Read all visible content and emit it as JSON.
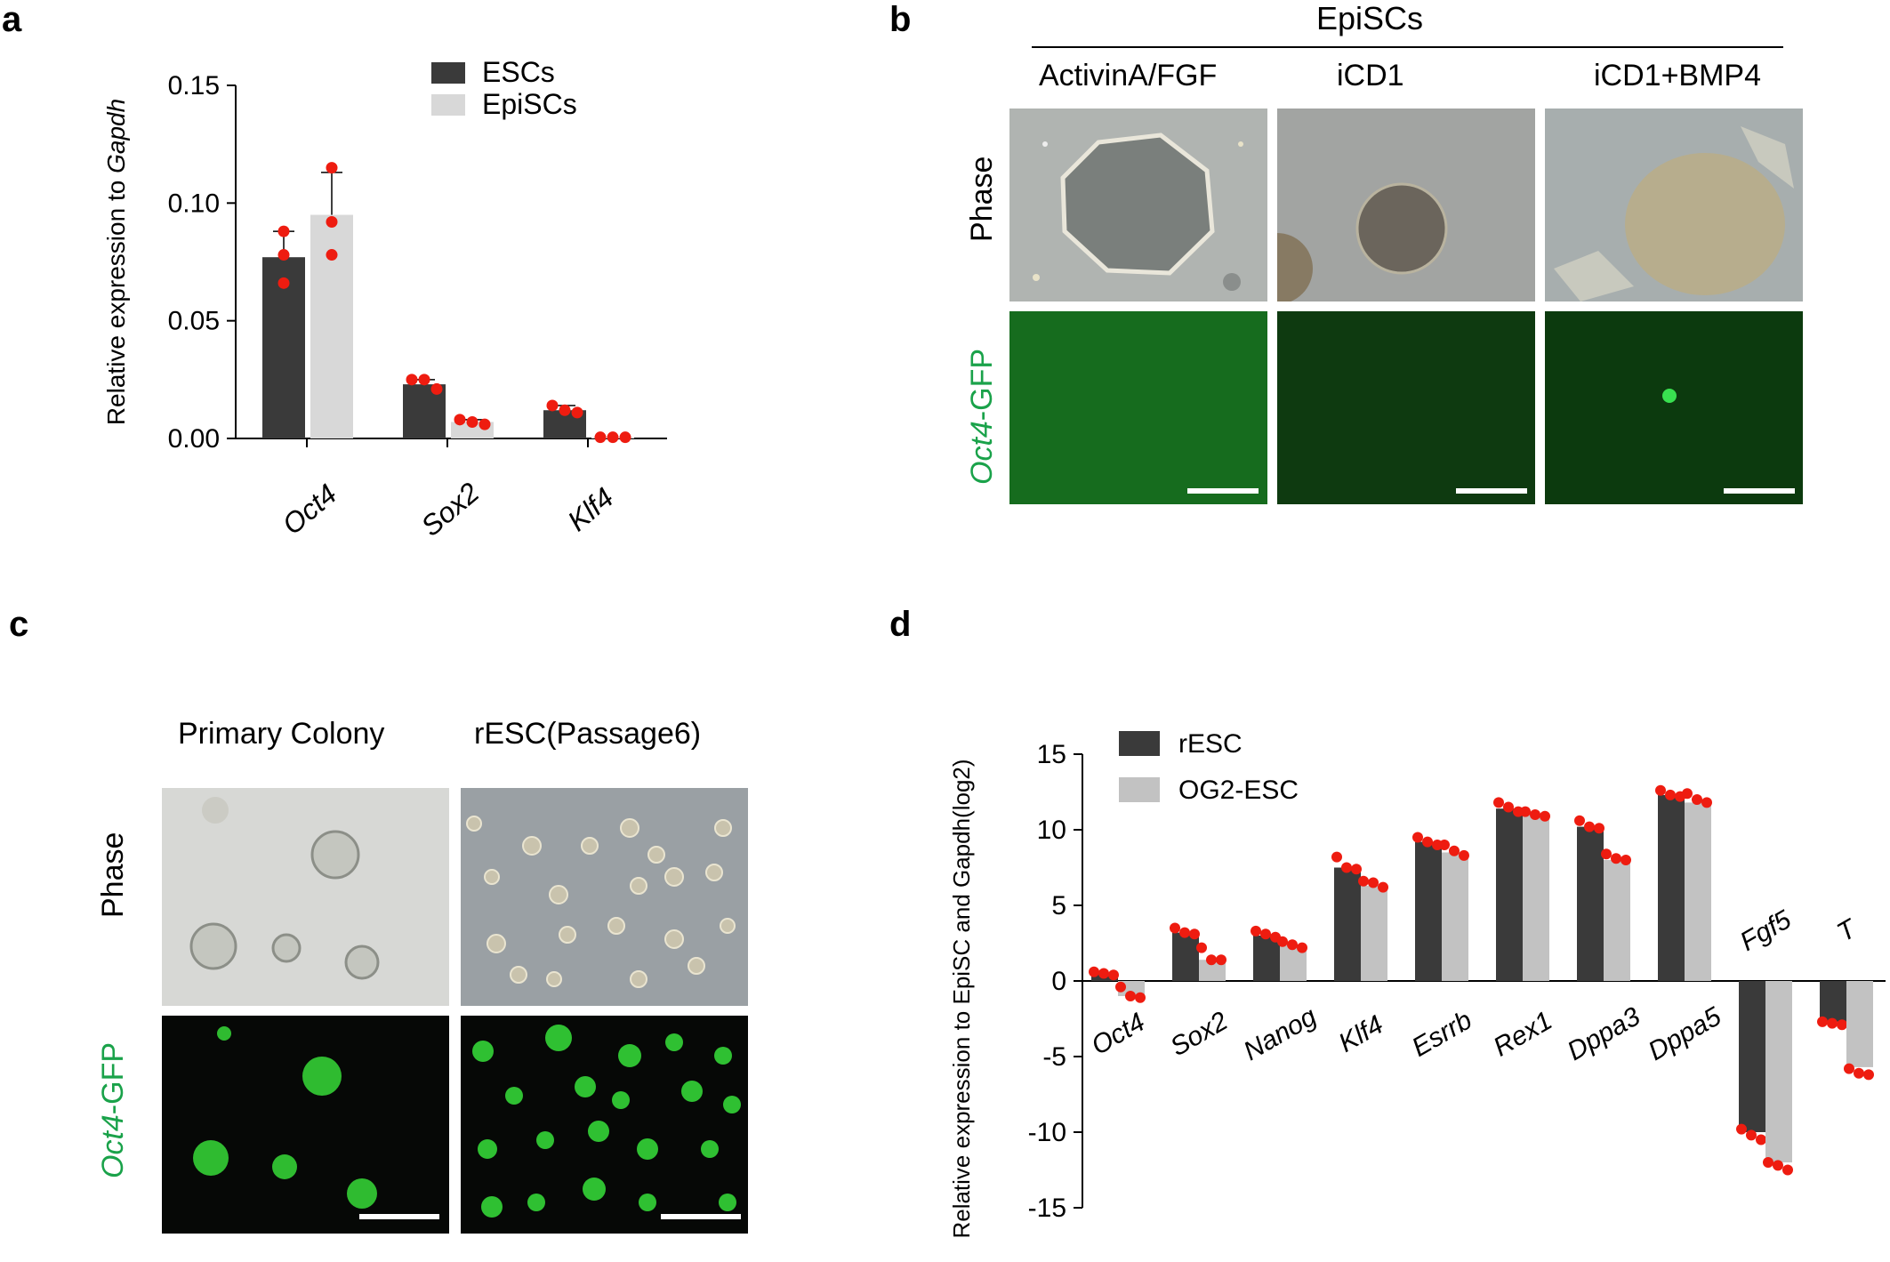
{
  "panels": {
    "a": {
      "letter": "a",
      "chart_data": {
        "type": "bar",
        "ylabel_prefix": "Relative expression to ",
        "ylabel_gene": "Gapdh",
        "ylim": [
          0,
          0.15
        ],
        "yticks": [
          "0.00",
          "0.05",
          "0.10",
          "0.15"
        ],
        "ytick_values": [
          0,
          0.05,
          0.1,
          0.15
        ],
        "categories": [
          "Oct4",
          "Sox2",
          "Klf4"
        ],
        "series": [
          {
            "name": "ESCs",
            "color": "#3a3a3a",
            "values": [
              0.077,
              0.023,
              0.012
            ],
            "err": [
              0.011,
              0.002,
              0.002
            ],
            "points": [
              [
                0.088,
                0.078,
                0.066
              ],
              [
                0.025,
                0.025,
                0.021
              ],
              [
                0.014,
                0.012,
                0.011
              ]
            ]
          },
          {
            "name": "EpiSCs",
            "color": "#d8d8d8",
            "values": [
              0.095,
              0.007,
              0.0005
            ],
            "err": [
              0.018,
              0.001,
              0
            ],
            "points": [
              [
                0.115,
                0.092,
                0.078
              ],
              [
                0.008,
                0.007,
                0.006
              ],
              [
                0.0005,
                0.0005,
                0.0005
              ]
            ]
          }
        ],
        "legend_position": "top-right",
        "grid": false
      }
    },
    "b": {
      "letter": "b",
      "header": "EpiSCs",
      "columns": [
        "ActivinA/FGF",
        "iCD1",
        "iCD1+BMP4"
      ],
      "rows": [
        {
          "label": "Phase"
        },
        {
          "label_gene": "Oct4",
          "label_suffix": "-GFP"
        }
      ]
    },
    "c": {
      "letter": "c",
      "columns": [
        "Primary Colony",
        "rESC(Passage6)"
      ],
      "rows": [
        {
          "label": "Phase"
        },
        {
          "label_gene": "Oct4",
          "label_suffix": "-GFP"
        }
      ]
    },
    "d": {
      "letter": "d",
      "chart_data": {
        "type": "bar",
        "ylabel": "Relative expression to EpiSC and Gapdh(log2)",
        "ylim": [
          -15,
          15
        ],
        "yticks": [
          "15",
          "10",
          "5",
          "0",
          "-5",
          "-10",
          "-15"
        ],
        "ytick_values": [
          15,
          10,
          5,
          0,
          -5,
          -10,
          -15
        ],
        "categories": [
          "Oct4",
          "Sox2",
          "Nanog",
          "Klf4",
          "Esrrb",
          "Rex1",
          "Dppa3",
          "Dppa5",
          "Fgf5",
          "T"
        ],
        "series": [
          {
            "name": "rESC",
            "color": "#3a3a3a",
            "values": [
              0.5,
              3.2,
              3.0,
              7.5,
              9.2,
              11.4,
              10.2,
              12.3,
              -10.0,
              -2.7
            ],
            "points": [
              [
                0.6,
                0.5,
                0.4
              ],
              [
                3.5,
                3.2,
                3.1
              ],
              [
                3.3,
                3.1,
                2.9
              ],
              [
                8.2,
                7.5,
                7.4
              ],
              [
                9.5,
                9.2,
                9.0
              ],
              [
                11.8,
                11.5,
                11.2
              ],
              [
                10.6,
                10.2,
                10.1
              ],
              [
                12.6,
                12.3,
                12.2
              ],
              [
                -9.8,
                -10.2,
                -10.5
              ],
              [
                -2.7,
                -2.8,
                -2.9
              ]
            ]
          },
          {
            "name": "OG2-ESC",
            "color": "#c2c2c2",
            "values": [
              -1.0,
              1.4,
              2.4,
              6.3,
              8.5,
              11.0,
              8.0,
              11.8,
              -12.0,
              -5.7
            ],
            "points": [
              [
                -0.4,
                -1.0,
                -1.1
              ],
              [
                2.2,
                1.4,
                1.4
              ],
              [
                2.6,
                2.4,
                2.2
              ],
              [
                6.6,
                6.5,
                6.2
              ],
              [
                9.0,
                8.6,
                8.3
              ],
              [
                11.2,
                11.0,
                10.9
              ],
              [
                8.4,
                8.1,
                8.0
              ],
              [
                12.4,
                12.0,
                11.8
              ],
              [
                -12.0,
                -12.2,
                -12.5
              ],
              [
                -5.8,
                -6.1,
                -6.2
              ]
            ]
          }
        ],
        "legend_position": "top-left",
        "grid": false
      }
    }
  }
}
